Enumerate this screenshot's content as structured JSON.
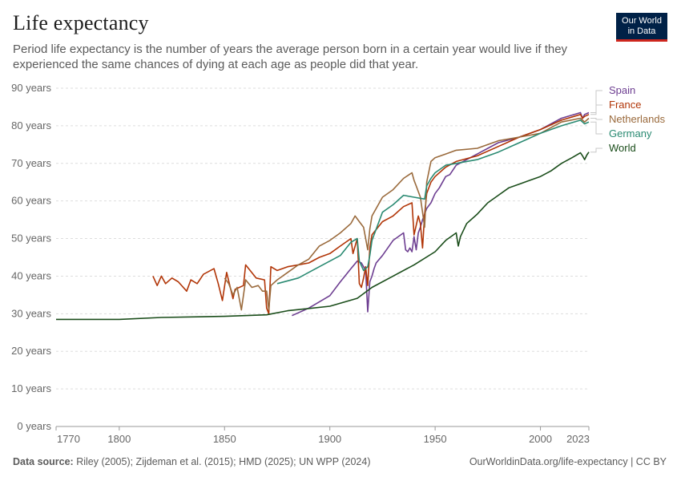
{
  "header": {
    "title": "Life expectancy",
    "subtitle": "Period life expectancy is the number of years the average person born in a certain year would live if they experienced the same chances of dying at each age as people did that year.",
    "logo_line1": "Our World",
    "logo_line2": "in Data"
  },
  "footer": {
    "source_label": "Data source:",
    "source_text": "Riley (2005); Zijdeman et al. (2015); HMD (2025); UN WPP (2024)",
    "credit": "OurWorldinData.org/life-expectancy | CC BY"
  },
  "colors": {
    "logo_bg": "#002147",
    "logo_accent": "#ce261e",
    "grid": "#dddddd"
  },
  "chart_data": {
    "type": "line",
    "title": "Life expectancy",
    "xlim": [
      1770,
      2023
    ],
    "ylim": [
      0,
      90
    ],
    "x_ticks": [
      1770,
      1800,
      1850,
      1900,
      1950,
      2000,
      2023
    ],
    "y_ticks": [
      0,
      10,
      20,
      30,
      40,
      50,
      60,
      70,
      80,
      90
    ],
    "y_tick_labels": [
      "0 years",
      "10 years",
      "20 years",
      "30 years",
      "40 years",
      "50 years",
      "60 years",
      "70 years",
      "80 years",
      "90 years"
    ],
    "grid": "horizontal dashed",
    "legend": "right-side end labels",
    "series": [
      {
        "name": "Spain",
        "color": "#6d3e91",
        "x": [
          1882,
          1890,
          1900,
          1905,
          1910,
          1913,
          1915,
          1916,
          1917,
          1918,
          1919,
          1920,
          1921,
          1922,
          1925,
          1930,
          1935,
          1936,
          1937,
          1938,
          1939,
          1940,
          1941,
          1942,
          1943,
          1944,
          1945,
          1946,
          1948,
          1950,
          1952,
          1955,
          1957,
          1960,
          1970,
          1980,
          1990,
          2000,
          2010,
          2019,
          2020,
          2021,
          2023
        ],
        "y": [
          29.5,
          31.5,
          34.8,
          38.5,
          42.0,
          44.0,
          43.5,
          42.5,
          41.5,
          30.5,
          38.5,
          40.0,
          42.0,
          43.5,
          45.5,
          49.5,
          51.5,
          47.0,
          46.5,
          47.5,
          46.5,
          50.5,
          47.0,
          51.5,
          53.0,
          55.0,
          56.5,
          58.0,
          59.5,
          62.0,
          63.5,
          66.5,
          67.0,
          69.5,
          72.5,
          75.5,
          77.0,
          79.0,
          82.0,
          83.5,
          82.0,
          83.0,
          83.5
        ]
      },
      {
        "name": "France",
        "color": "#b13507",
        "x": [
          1816,
          1818,
          1820,
          1822,
          1825,
          1828,
          1832,
          1834,
          1837,
          1840,
          1845,
          1847,
          1849,
          1851,
          1854,
          1855,
          1859,
          1860,
          1865,
          1869,
          1870,
          1871,
          1872,
          1875,
          1880,
          1885,
          1890,
          1895,
          1900,
          1905,
          1910,
          1911,
          1913,
          1914,
          1915,
          1916,
          1917,
          1918,
          1919,
          1920,
          1925,
          1930,
          1935,
          1939,
          1940,
          1941,
          1942,
          1943,
          1944,
          1945,
          1946,
          1948,
          1950,
          1955,
          1960,
          1970,
          1980,
          1990,
          2000,
          2010,
          2019,
          2020,
          2021,
          2023
        ],
        "y": [
          40.0,
          37.5,
          40.0,
          38.0,
          39.5,
          38.5,
          36.0,
          39.0,
          38.0,
          40.5,
          42.0,
          38.0,
          33.5,
          41.0,
          34.0,
          36.5,
          37.5,
          43.0,
          39.5,
          39.0,
          31.5,
          30.0,
          42.5,
          41.5,
          42.5,
          43.0,
          43.5,
          45.0,
          46.0,
          48.0,
          50.0,
          46.0,
          50.0,
          38.0,
          37.0,
          39.5,
          42.5,
          37.5,
          47.5,
          51.0,
          54.5,
          56.0,
          58.5,
          59.5,
          51.0,
          53.5,
          56.0,
          54.0,
          47.5,
          56.5,
          62.0,
          65.0,
          66.5,
          69.0,
          70.5,
          72.0,
          74.5,
          77.0,
          79.0,
          81.5,
          83.0,
          82.0,
          82.5,
          83.0
        ]
      },
      {
        "name": "Netherlands",
        "color": "#9a6a3c",
        "x": [
          1850,
          1852,
          1854,
          1856,
          1858,
          1860,
          1863,
          1866,
          1868,
          1870,
          1871,
          1872,
          1875,
          1880,
          1885,
          1890,
          1895,
          1900,
          1905,
          1910,
          1912,
          1914,
          1916,
          1918,
          1919,
          1920,
          1925,
          1930,
          1935,
          1939,
          1940,
          1941,
          1943,
          1944,
          1945,
          1946,
          1948,
          1950,
          1955,
          1960,
          1970,
          1980,
          1990,
          2000,
          2010,
          2019,
          2020,
          2021,
          2023
        ],
        "y": [
          39.5,
          38.0,
          35.0,
          37.0,
          31.0,
          39.0,
          37.0,
          37.5,
          36.0,
          36.0,
          31.0,
          37.5,
          39.0,
          41.0,
          43.0,
          44.5,
          48.0,
          49.5,
          51.5,
          54.0,
          56.0,
          54.5,
          53.0,
          47.0,
          52.5,
          56.0,
          61.0,
          63.0,
          66.0,
          67.5,
          65.5,
          64.0,
          61.0,
          57.0,
          53.0,
          65.0,
          70.5,
          71.5,
          72.5,
          73.5,
          74.0,
          76.0,
          77.0,
          78.0,
          81.0,
          82.0,
          81.5,
          81.0,
          82.0
        ]
      },
      {
        "name": "Germany",
        "color": "#2a8a72",
        "x": [
          1875,
          1885,
          1895,
          1905,
          1910,
          1913,
          1914,
          1916,
          1918,
          1919,
          1920,
          1925,
          1930,
          1935,
          1940,
          1945,
          1946,
          1948,
          1950,
          1955,
          1960,
          1970,
          1980,
          1990,
          2000,
          2010,
          2019,
          2020,
          2021,
          2023
        ],
        "y": [
          38.0,
          39.5,
          42.5,
          45.5,
          49.0,
          50.0,
          44.0,
          41.5,
          42.5,
          45.5,
          49.5,
          57.0,
          59.0,
          61.5,
          61.0,
          60.5,
          64.0,
          66.0,
          67.5,
          69.5,
          70.0,
          71.0,
          73.0,
          75.5,
          78.0,
          80.0,
          81.5,
          81.0,
          80.5,
          81.0
        ]
      },
      {
        "name": "World",
        "color": "#1a4d1a",
        "x": [
          1770,
          1800,
          1820,
          1850,
          1870,
          1880,
          1900,
          1913,
          1920,
          1930,
          1940,
          1950,
          1955,
          1960,
          1961,
          1962,
          1965,
          1970,
          1975,
          1980,
          1985,
          1990,
          1995,
          2000,
          2005,
          2010,
          2015,
          2019,
          2020,
          2021,
          2022,
          2023
        ],
        "y": [
          28.5,
          28.5,
          29.0,
          29.3,
          29.7,
          30.8,
          32.0,
          34.1,
          37.0,
          40.0,
          43.0,
          46.5,
          49.5,
          51.5,
          48.0,
          50.5,
          54.0,
          56.5,
          59.5,
          61.5,
          63.5,
          64.5,
          65.5,
          66.5,
          68.0,
          70.0,
          71.5,
          72.8,
          72.0,
          71.0,
          72.2,
          73.0
        ]
      }
    ]
  }
}
